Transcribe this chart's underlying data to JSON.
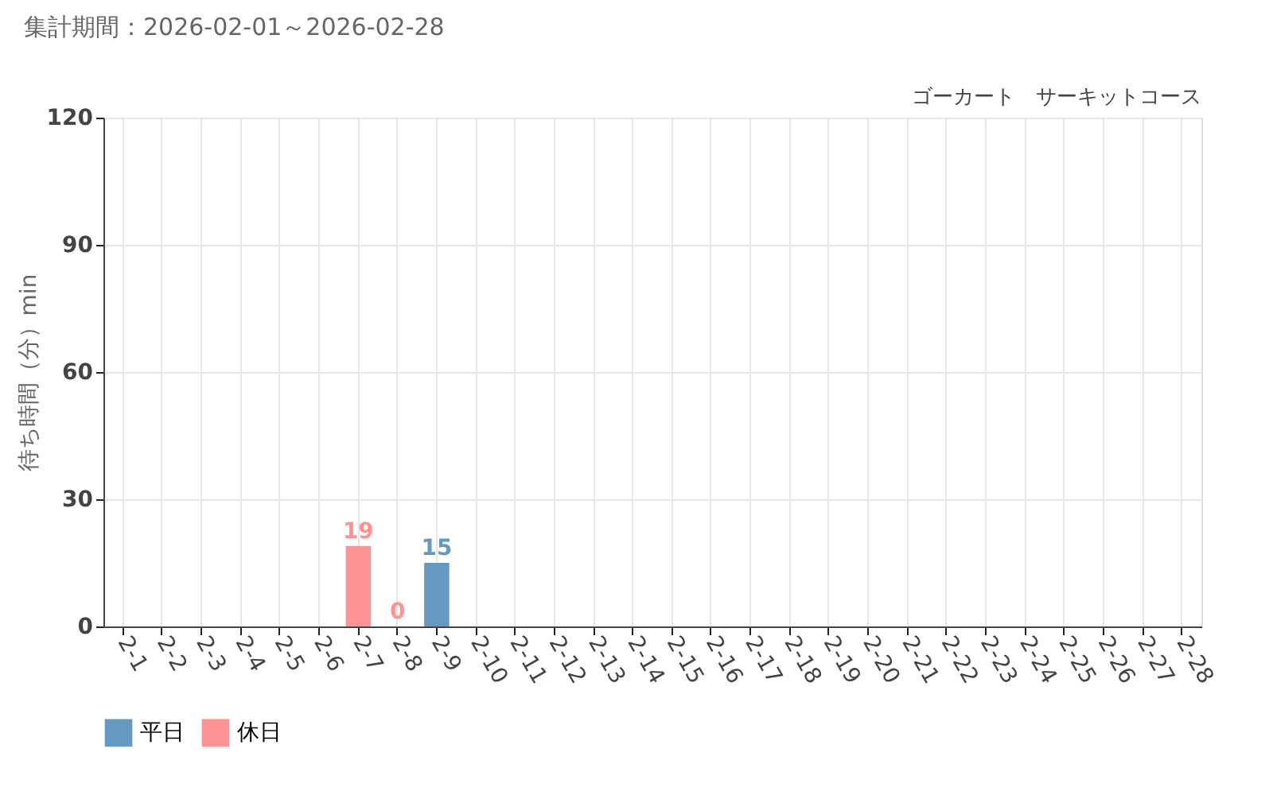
{
  "chart_data": {
    "type": "bar",
    "title": "集計期間：2026-02-01～2026-02-28",
    "annotations": [
      "ゴーカート　サーキットコース"
    ],
    "ylabel": "待ち時間（分）min",
    "categories": [
      "2-1",
      "2-2",
      "2-3",
      "2-4",
      "2-5",
      "2-6",
      "2-7",
      "2-8",
      "2-9",
      "2-10",
      "2-11",
      "2-12",
      "2-13",
      "2-14",
      "2-15",
      "2-16",
      "2-17",
      "2-18",
      "2-19",
      "2-20",
      "2-21",
      "2-22",
      "2-23",
      "2-24",
      "2-25",
      "2-26",
      "2-27",
      "2-28"
    ],
    "series": [
      {
        "name": "平日",
        "color": "#6699c2",
        "values": [
          null,
          null,
          null,
          null,
          null,
          null,
          null,
          null,
          15,
          null,
          null,
          null,
          null,
          null,
          null,
          null,
          null,
          null,
          null,
          null,
          null,
          null,
          null,
          null,
          null,
          null,
          null,
          null
        ]
      },
      {
        "name": "休日",
        "color": "#ff9292",
        "values": [
          null,
          null,
          null,
          null,
          null,
          null,
          19,
          0,
          null,
          null,
          null,
          null,
          null,
          null,
          null,
          null,
          null,
          null,
          null,
          null,
          null,
          null,
          null,
          null,
          null,
          null,
          null,
          null
        ]
      }
    ],
    "ylim": [
      0,
      120
    ],
    "yticks": [
      0,
      30,
      60,
      90,
      120
    ],
    "grid": true,
    "legend": "bottom left",
    "data_labels": true
  }
}
